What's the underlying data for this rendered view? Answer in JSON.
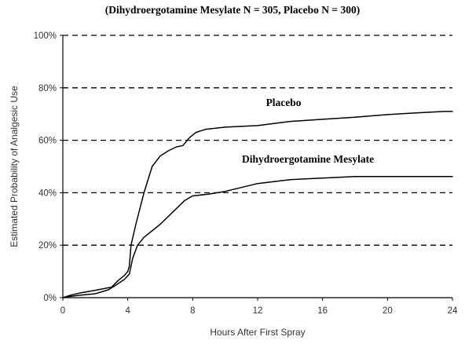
{
  "chart_data": {
    "type": "line",
    "title": "",
    "subtitle": "(Dihydroergotamine Mesylate N = 305, Placebo N = 300)",
    "xlabel": "Hours After First Spray",
    "ylabel": "Estimated Probability of Analgesic Use",
    "xlim": [
      0,
      24
    ],
    "ylim": [
      0,
      100
    ],
    "x_ticks": [
      0,
      4,
      8,
      12,
      16,
      20,
      24
    ],
    "x_tick_labels": [
      "0",
      "4",
      "8",
      "12",
      "16",
      "20",
      "24"
    ],
    "y_ticks": [
      0,
      20,
      40,
      60,
      80,
      100
    ],
    "y_tick_labels": [
      "0%",
      "20%",
      "40%",
      "60%",
      "80%",
      "100%"
    ],
    "grid": "horizontal-dashed",
    "series": [
      {
        "name": "Placebo",
        "color": "#000000",
        "points": [
          [
            0,
            0
          ],
          [
            0.5,
            1
          ],
          [
            1,
            1.7
          ],
          [
            2,
            2.8
          ],
          [
            3,
            4
          ],
          [
            3.4,
            6.5
          ],
          [
            3.8,
            8.5
          ],
          [
            4.0,
            10
          ],
          [
            4.1,
            12
          ],
          [
            4.2,
            20
          ],
          [
            4.5,
            28
          ],
          [
            5.0,
            40
          ],
          [
            5.5,
            50
          ],
          [
            6.0,
            54
          ],
          [
            6.5,
            56
          ],
          [
            7.0,
            57.5
          ],
          [
            7.4,
            58
          ],
          [
            7.8,
            61
          ],
          [
            8.2,
            63
          ],
          [
            8.8,
            64.2
          ],
          [
            10,
            65
          ],
          [
            12,
            65.6
          ],
          [
            14,
            67.2
          ],
          [
            16,
            68
          ],
          [
            18,
            68.8
          ],
          [
            20,
            69.8
          ],
          [
            22,
            70.5
          ],
          [
            23.5,
            71
          ],
          [
            24,
            71
          ]
        ]
      },
      {
        "name": "Dihydroergotamine Mesylate",
        "color": "#000000",
        "points": [
          [
            0,
            0
          ],
          [
            0.5,
            0.5
          ],
          [
            1,
            0.9
          ],
          [
            2,
            1.5
          ],
          [
            2.8,
            3
          ],
          [
            3.2,
            4.5
          ],
          [
            3.8,
            7
          ],
          [
            4.1,
            9
          ],
          [
            4.3,
            15
          ],
          [
            4.6,
            20
          ],
          [
            5.0,
            23
          ],
          [
            6.0,
            28
          ],
          [
            7.0,
            34
          ],
          [
            7.5,
            37
          ],
          [
            8.0,
            38.8
          ],
          [
            9.0,
            39.5
          ],
          [
            10,
            40.5
          ],
          [
            11,
            42
          ],
          [
            12,
            43.5
          ],
          [
            14,
            45
          ],
          [
            16,
            45.6
          ],
          [
            18,
            46.2
          ],
          [
            20,
            46.2
          ],
          [
            22,
            46.2
          ],
          [
            24,
            46.2
          ]
        ]
      }
    ],
    "annotations": [
      {
        "text": "Placebo",
        "x": 13.6,
        "y": 73
      },
      {
        "text": "Dihydroergotamine Mesylate",
        "x": 15.1,
        "y": 51.5
      }
    ]
  }
}
